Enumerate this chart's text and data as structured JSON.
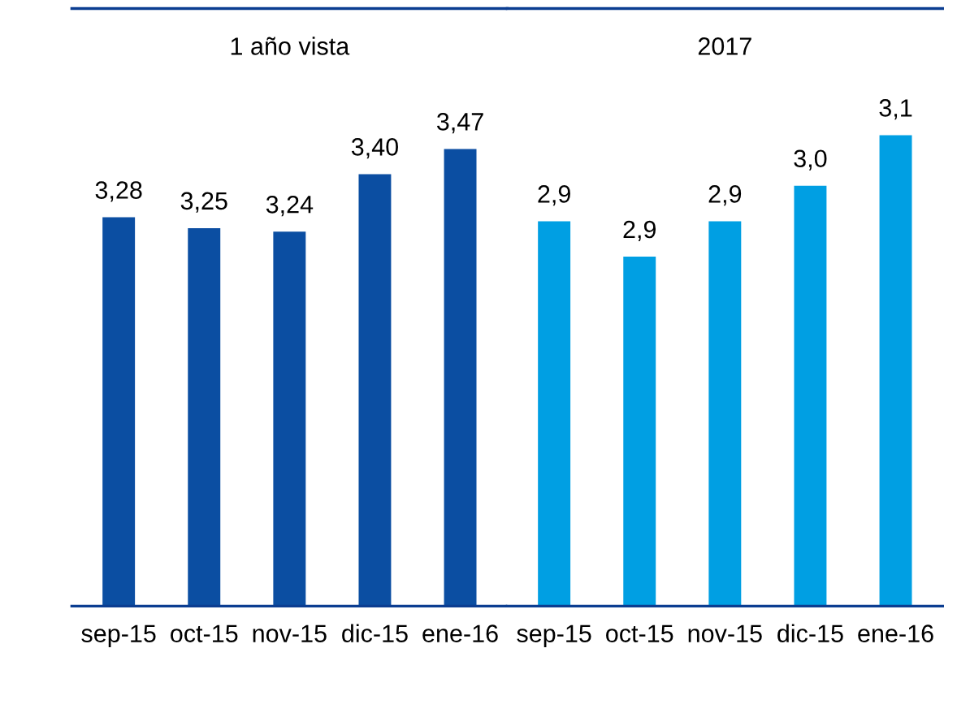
{
  "chart_data": [
    {
      "type": "bar",
      "title": "1 año vista",
      "categories": [
        "sep-15",
        "oct-15",
        "nov-15",
        "dic-15",
        "ene-16"
      ],
      "series": [
        {
          "color": "#0b4ea2",
          "values": [
            3.28,
            3.25,
            3.24,
            3.4,
            3.47
          ],
          "value_labels": [
            "3,28",
            "3,25",
            "3,24",
            "3,40",
            "3,47"
          ]
        }
      ],
      "ylim": [
        2.2,
        3.86
      ],
      "tick_labels": "x",
      "grid": false,
      "legend": false
    },
    {
      "type": "bar",
      "title": "2017",
      "categories": [
        "sep-15",
        "oct-15",
        "nov-15",
        "dic-15",
        "ene-16"
      ],
      "series": [
        {
          "color": "#009fe3",
          "values": [
            2.93,
            2.86,
            2.93,
            3.0,
            3.1
          ],
          "value_labels": [
            "2,9",
            "2,9",
            "2,9",
            "3,0",
            "3,1"
          ]
        }
      ],
      "ylim": [
        2.17,
        3.35
      ],
      "tick_labels": "x",
      "grid": false,
      "legend": false
    }
  ]
}
